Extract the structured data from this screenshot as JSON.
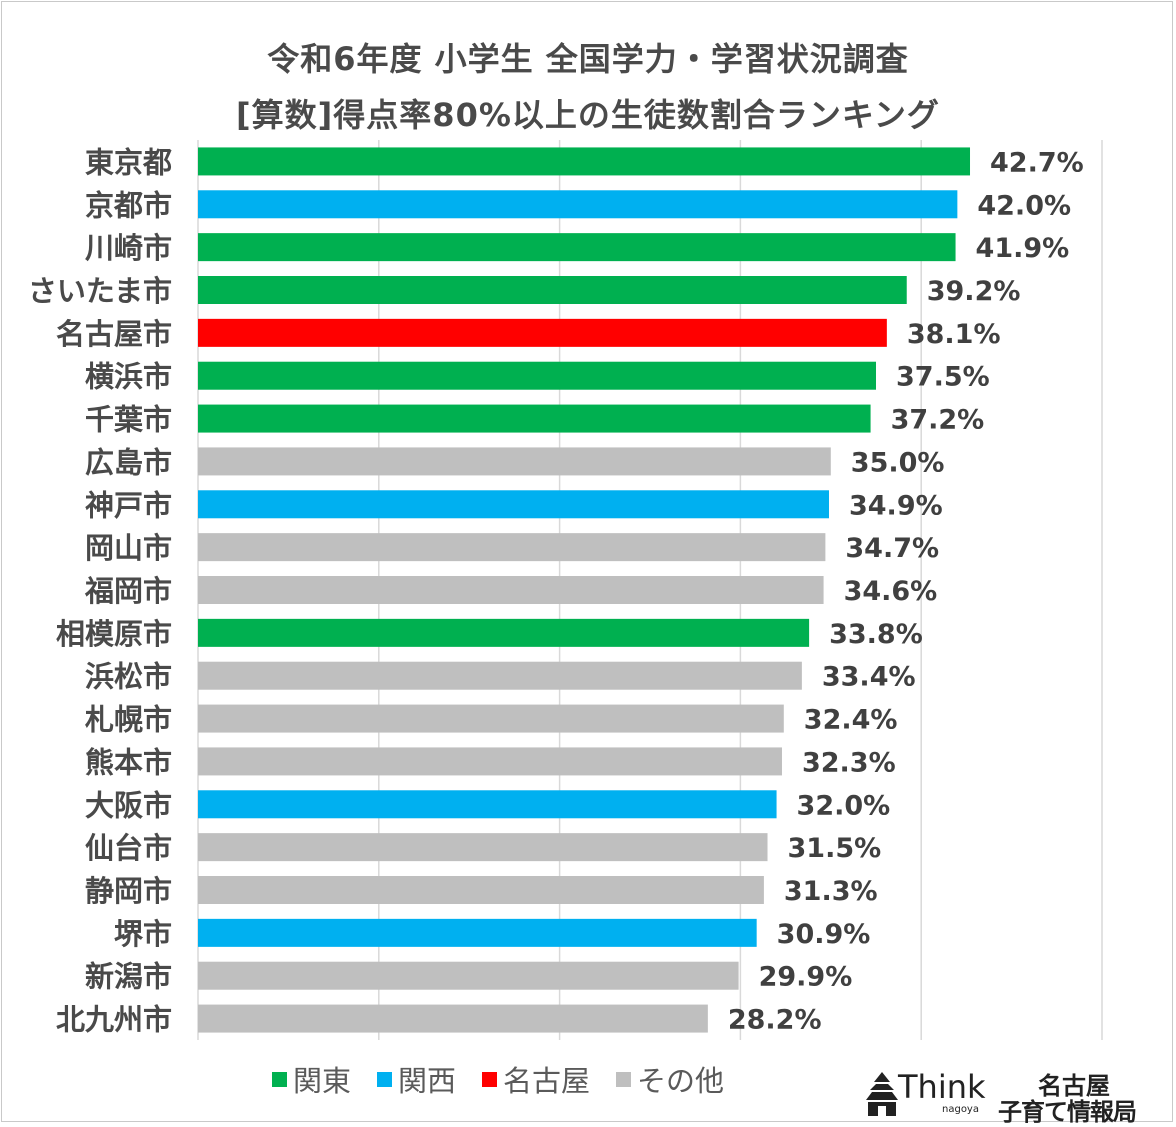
{
  "title_line1": "令和6年度 小学生 全国学力・学習状況調査",
  "title_line2": "[算数]得点率80%以上の生徒数割合ランキング",
  "colors": {
    "関東": "#00b050",
    "関西": "#00b0f0",
    "名古屋": "#ff0000",
    "その他": "#bfbfbf"
  },
  "legend": [
    {
      "label": "関東",
      "key": "関東"
    },
    {
      "label": "関西",
      "key": "関西"
    },
    {
      "label": "名古屋",
      "key": "名古屋"
    },
    {
      "label": "その他",
      "key": "その他"
    }
  ],
  "chart_data": {
    "type": "bar",
    "orientation": "horizontal",
    "title": "令和6年度 小学生 全国学力・学習状況調査 [算数]得点率80%以上の生徒数割合ランキング",
    "xlim": [
      0,
      50
    ],
    "grid": true,
    "legend_position": "bottom",
    "categories": [
      "東京都",
      "京都市",
      "川崎市",
      "さいたま市",
      "名古屋市",
      "横浜市",
      "千葉市",
      "広島市",
      "神戸市",
      "岡山市",
      "福岡市",
      "相模原市",
      "浜松市",
      "札幌市",
      "熊本市",
      "大阪市",
      "仙台市",
      "静岡市",
      "堺市",
      "新潟市",
      "北九州市"
    ],
    "values": [
      42.7,
      42.0,
      41.9,
      39.2,
      38.1,
      37.5,
      37.2,
      35.0,
      34.9,
      34.7,
      34.6,
      33.8,
      33.4,
      32.4,
      32.3,
      32.0,
      31.5,
      31.3,
      30.9,
      29.9,
      28.2
    ],
    "labels": [
      "42.7%",
      "42.0%",
      "41.9%",
      "39.2%",
      "38.1%",
      "37.5%",
      "37.2%",
      "35.0%",
      "34.9%",
      "34.7%",
      "34.6%",
      "33.8%",
      "33.4%",
      "32.4%",
      "32.3%",
      "32.0%",
      "31.5%",
      "31.3%",
      "30.9%",
      "29.9%",
      "28.2%"
    ],
    "groups": [
      "関東",
      "関西",
      "関東",
      "関東",
      "名古屋",
      "関東",
      "関東",
      "その他",
      "関西",
      "その他",
      "その他",
      "関東",
      "その他",
      "その他",
      "その他",
      "関西",
      "その他",
      "その他",
      "関西",
      "その他",
      "その他"
    ]
  },
  "logo": {
    "think": "Think",
    "sub": "nagoya",
    "line1": "名古屋",
    "line2": "子育て情報局"
  }
}
